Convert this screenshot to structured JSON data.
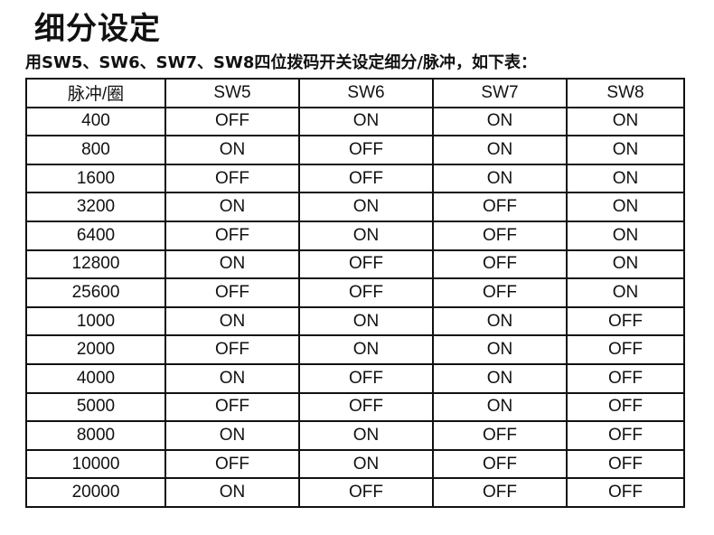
{
  "title": "细分设定",
  "subtitle": "用SW5、SW6、SW7、SW8四位拨码开关设定细分/脉冲，如下表：",
  "table": {
    "headers": [
      "脉冲/圈",
      "SW5",
      "SW6",
      "SW7",
      "SW8"
    ],
    "rows": [
      [
        "400",
        "OFF",
        "ON",
        "ON",
        "ON"
      ],
      [
        "800",
        "ON",
        "OFF",
        "ON",
        "ON"
      ],
      [
        "1600",
        "OFF",
        "OFF",
        "ON",
        "ON"
      ],
      [
        "3200",
        "ON",
        "ON",
        "OFF",
        "ON"
      ],
      [
        "6400",
        "OFF",
        "ON",
        "OFF",
        "ON"
      ],
      [
        "12800",
        "ON",
        "OFF",
        "OFF",
        "ON"
      ],
      [
        "25600",
        "OFF",
        "OFF",
        "OFF",
        "ON"
      ],
      [
        "1000",
        "ON",
        "ON",
        "ON",
        "OFF"
      ],
      [
        "2000",
        "OFF",
        "ON",
        "ON",
        "OFF"
      ],
      [
        "4000",
        "ON",
        "OFF",
        "ON",
        "OFF"
      ],
      [
        "5000",
        "OFF",
        "OFF",
        "ON",
        "OFF"
      ],
      [
        "8000",
        "ON",
        "ON",
        "OFF",
        "OFF"
      ],
      [
        "10000",
        "OFF",
        "ON",
        "OFF",
        "OFF"
      ],
      [
        "20000",
        "ON",
        "OFF",
        "OFF",
        "OFF"
      ]
    ]
  }
}
